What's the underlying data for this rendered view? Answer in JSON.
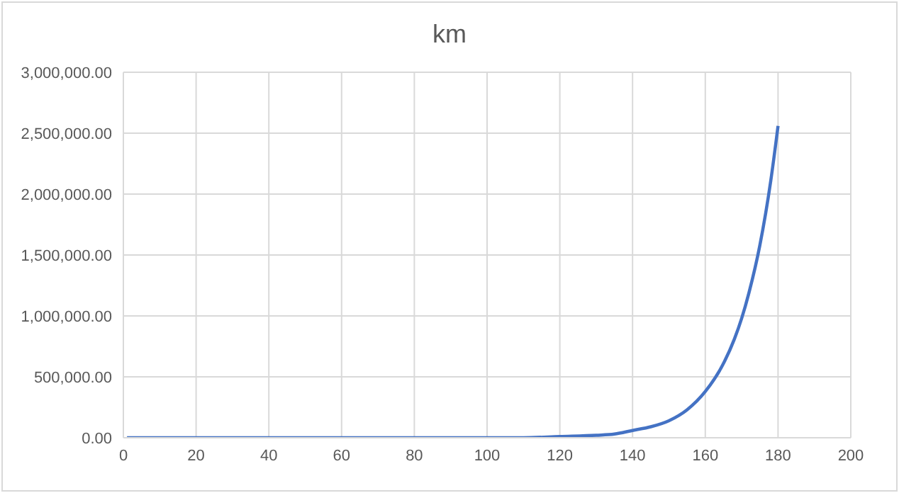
{
  "chart_data": {
    "type": "line",
    "title": "km",
    "x": [
      1,
      20,
      40,
      60,
      80,
      100,
      110,
      120,
      130,
      135,
      140,
      145,
      150,
      155,
      160,
      165,
      168,
      170,
      172,
      175,
      178,
      180
    ],
    "series": [
      {
        "color": "#4472c4",
        "values": [
          0,
          0,
          0,
          0,
          0,
          0,
          0,
          10000,
          20000,
          30000,
          60000,
          90000,
          140000,
          230000,
          380000,
          610000,
          810000,
          980000,
          1190000,
          1580000,
          2110000,
          2560000
        ]
      }
    ],
    "xlim": [
      0,
      200
    ],
    "xticks": [
      0,
      20,
      40,
      60,
      80,
      100,
      120,
      140,
      160,
      180,
      200
    ],
    "ylim": [
      0,
      3000000
    ],
    "yticks": [
      {
        "value": 0,
        "label": "0.00"
      },
      {
        "value": 500000,
        "label": "500,000.00"
      },
      {
        "value": 1000000,
        "label": "1,000,000.00"
      },
      {
        "value": 1500000,
        "label": "1,500,000.00"
      },
      {
        "value": 2000000,
        "label": "2,000,000.00"
      },
      {
        "value": 2500000,
        "label": "2,500,000.00"
      },
      {
        "value": 3000000,
        "label": "3,000,000.00"
      }
    ],
    "grid": true,
    "legend": false,
    "marker": "none",
    "line_style": "solid"
  }
}
